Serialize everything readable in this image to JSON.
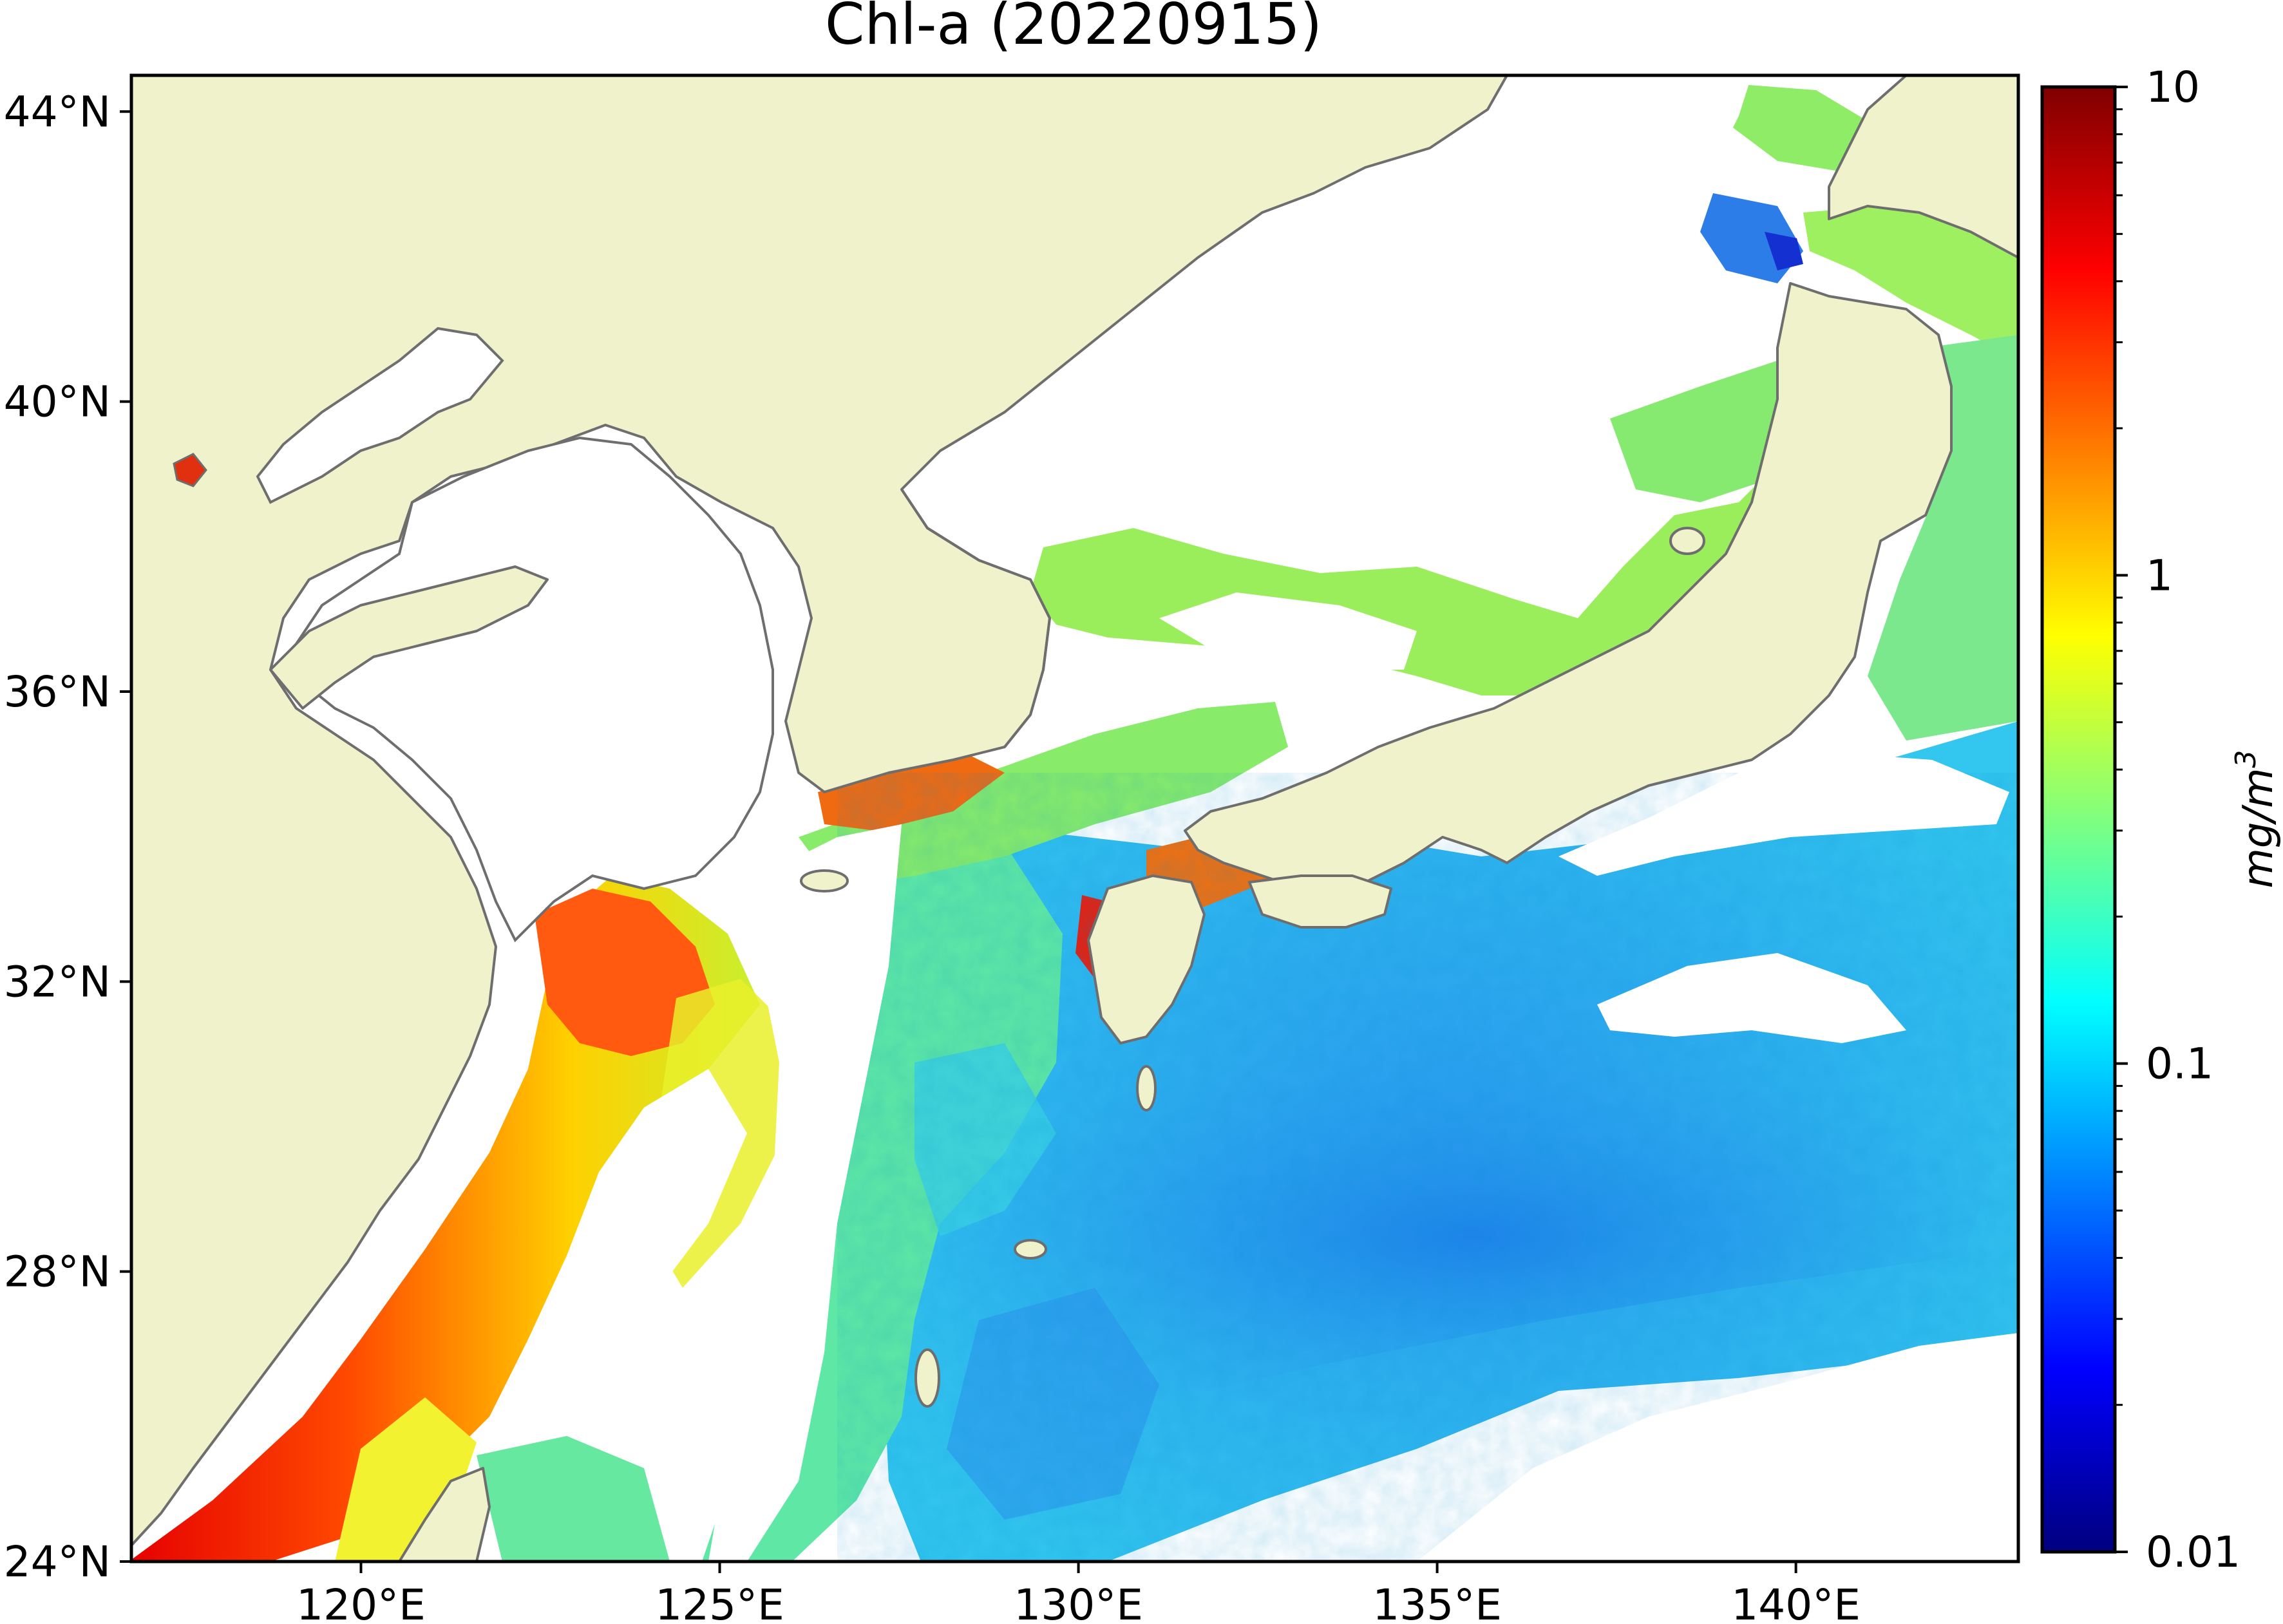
{
  "figure": {
    "title": "Chl-a (20220915)",
    "land_color": "#f0f2cb",
    "cloud_color": "#ffffff",
    "coastline_color": "#6e6e6e",
    "colormap": "jet"
  },
  "map": {
    "x_axis": {
      "ticks": [
        {
          "value": 120,
          "label": "120°E"
        },
        {
          "value": 125,
          "label": "125°E"
        },
        {
          "value": 130,
          "label": "130°E"
        },
        {
          "value": 135,
          "label": "135°E"
        },
        {
          "value": 140,
          "label": "140°E"
        }
      ],
      "range": [
        116.8,
        143.1
      ]
    },
    "y_axis": {
      "ticks": [
        {
          "value": 44,
          "label": "44°N"
        },
        {
          "value": 40,
          "label": "40°N"
        },
        {
          "value": 36,
          "label": "36°N"
        },
        {
          "value": 32,
          "label": "32°N"
        },
        {
          "value": 28,
          "label": "28°N"
        },
        {
          "value": 24,
          "label": "24°N"
        }
      ],
      "range": [
        24.0,
        44.5
      ]
    }
  },
  "colorbar": {
    "unit_base": "mg/m",
    "unit_exp": "3",
    "scale": "log",
    "range": [
      0.01,
      10
    ],
    "ticks": [
      {
        "value": 10,
        "label": "10"
      },
      {
        "value": 1,
        "label": "1"
      },
      {
        "value": 0.1,
        "label": "0.1"
      },
      {
        "value": 0.01,
        "label": "0.01"
      }
    ],
    "colors": [
      "#00007f",
      "#0000ff",
      "#007fff",
      "#00ffff",
      "#7fff7f",
      "#ffff00",
      "#ff7f00",
      "#ff0000",
      "#7f0000"
    ]
  }
}
